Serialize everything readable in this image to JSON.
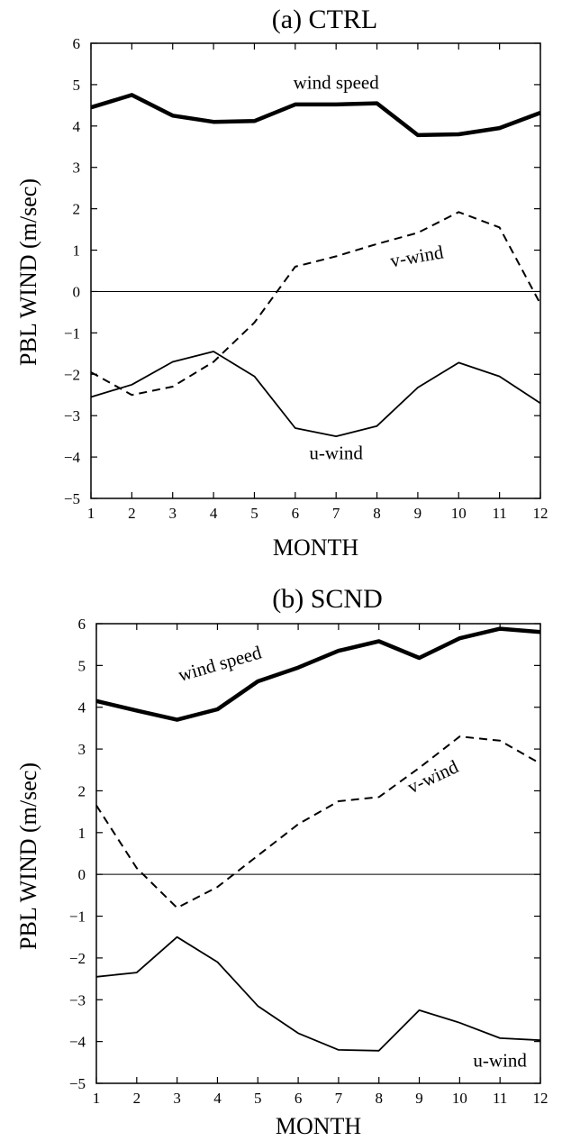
{
  "chart_data": [
    {
      "type": "line",
      "title": "(a) CTRL",
      "xlabel": "MONTH",
      "ylabel": "PBL WIND (m/sec)",
      "x": [
        1,
        2,
        3,
        4,
        5,
        6,
        7,
        8,
        9,
        10,
        11,
        12
      ],
      "xlim": [
        1,
        12
      ],
      "ylim": [
        -5,
        6
      ],
      "xticks": [
        "1",
        "2",
        "3",
        "4",
        "5",
        "6",
        "7",
        "8",
        "9",
        "10",
        "11",
        "12"
      ],
      "yticks": [
        "-5",
        "-4",
        "-3",
        "-2",
        "-1",
        "0",
        "1",
        "2",
        "3",
        "4",
        "5",
        "6"
      ],
      "zero_line": true,
      "grid": false,
      "series": [
        {
          "name": "wind speed",
          "style": "thick",
          "values": [
            4.45,
            4.75,
            4.25,
            4.1,
            4.12,
            4.52,
            4.52,
            4.55,
            3.78,
            3.8,
            3.95,
            4.32
          ]
        },
        {
          "name": "v-wind",
          "style": "dashed",
          "values": [
            -1.95,
            -2.5,
            -2.3,
            -1.7,
            -0.75,
            0.6,
            0.85,
            1.15,
            1.42,
            1.92,
            1.55,
            -0.3
          ]
        },
        {
          "name": "u-wind",
          "style": "thin",
          "values": [
            -2.55,
            -2.25,
            -1.7,
            -1.45,
            -2.05,
            -3.3,
            -3.5,
            -3.25,
            -2.32,
            -1.72,
            -2.05,
            -2.7
          ]
        }
      ],
      "annotations": [
        {
          "text": "wind speed",
          "x": 7,
          "y": 4.9,
          "rotate": 0
        },
        {
          "text": "v-wind",
          "x": 9.0,
          "y": 0.7,
          "rotate": -10
        },
        {
          "text": "u-wind",
          "x": 7.0,
          "y": -4.05,
          "rotate": 0
        }
      ]
    },
    {
      "type": "line",
      "title": "(b) SCND",
      "xlabel": "MONTH",
      "ylabel": "PBL WIND (m/sec)",
      "x": [
        1,
        2,
        3,
        4,
        5,
        6,
        7,
        8,
        9,
        10,
        11,
        12
      ],
      "xlim": [
        1,
        12
      ],
      "ylim": [
        -5,
        6
      ],
      "xticks": [
        "1",
        "2",
        "3",
        "4",
        "5",
        "6",
        "7",
        "8",
        "9",
        "10",
        "11",
        "12"
      ],
      "yticks": [
        "-5",
        "-4",
        "-3",
        "-2",
        "-1",
        "0",
        "1",
        "2",
        "3",
        "4",
        "5",
        "6"
      ],
      "zero_line": true,
      "grid": false,
      "series": [
        {
          "name": "wind speed",
          "style": "thick",
          "values": [
            4.15,
            3.92,
            3.7,
            3.95,
            4.62,
            4.95,
            5.35,
            5.58,
            5.18,
            5.65,
            5.88,
            5.8
          ]
        },
        {
          "name": "v-wind",
          "style": "dashed",
          "values": [
            1.65,
            0.15,
            -0.8,
            -0.3,
            0.45,
            1.2,
            1.75,
            1.85,
            2.55,
            3.3,
            3.2,
            2.65
          ]
        },
        {
          "name": "u-wind",
          "style": "thin",
          "values": [
            -2.45,
            -2.35,
            -1.5,
            -2.1,
            -3.15,
            -3.8,
            -4.2,
            -4.22,
            -3.25,
            -3.55,
            -3.92,
            -3.97
          ]
        }
      ],
      "annotations": [
        {
          "text": "wind speed",
          "x": 4.1,
          "y": 4.9,
          "rotate": -16
        },
        {
          "text": "v-wind",
          "x": 9.4,
          "y": 2.2,
          "rotate": -25
        },
        {
          "text": "u-wind",
          "x": 11.0,
          "y": -4.6,
          "rotate": 0
        }
      ]
    }
  ]
}
